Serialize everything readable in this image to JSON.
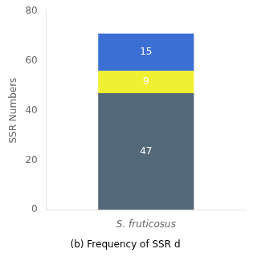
{
  "chart_data": {
    "type": "bar",
    "subtitle": "(b) Frequency of SSR d",
    "ylabel": "SSR Numbers",
    "categories": [
      "S. fruticosus"
    ],
    "series": [
      {
        "color": "#536878",
        "values": [
          47
        ]
      },
      {
        "color": "#f0f032",
        "values": [
          9
        ]
      },
      {
        "color": "#3b6fd4",
        "values": [
          15
        ]
      }
    ],
    "stacked": true,
    "data_labels": true,
    "grid": false,
    "ylim": [
      0,
      80
    ],
    "yticks": [
      0,
      20,
      40,
      60,
      80
    ]
  }
}
